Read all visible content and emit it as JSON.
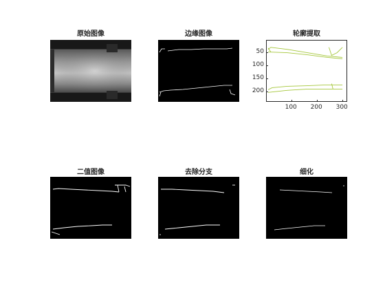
{
  "window": {
    "background": "#ffffff"
  },
  "panels": [
    {
      "id": "original",
      "title": "原始图像"
    },
    {
      "id": "edges",
      "title": "边缘图像"
    },
    {
      "id": "contour",
      "title": "轮廓提取"
    },
    {
      "id": "binary",
      "title": "二值图像"
    },
    {
      "id": "branch-removal",
      "title": "去除分支"
    },
    {
      "id": "thinning",
      "title": "细化"
    }
  ],
  "contour_plot": {
    "line_color": "#a4c639",
    "x_ticks": [
      "100",
      "200",
      "300"
    ],
    "y_ticks": [
      "50",
      "100",
      "150",
      "200"
    ],
    "x_tick_values": [
      100,
      200,
      300
    ],
    "y_tick_values": [
      50,
      100,
      150,
      200
    ],
    "xlim": [
      1,
      320
    ],
    "ylim": [
      1,
      240
    ],
    "y_reversed": true
  }
}
